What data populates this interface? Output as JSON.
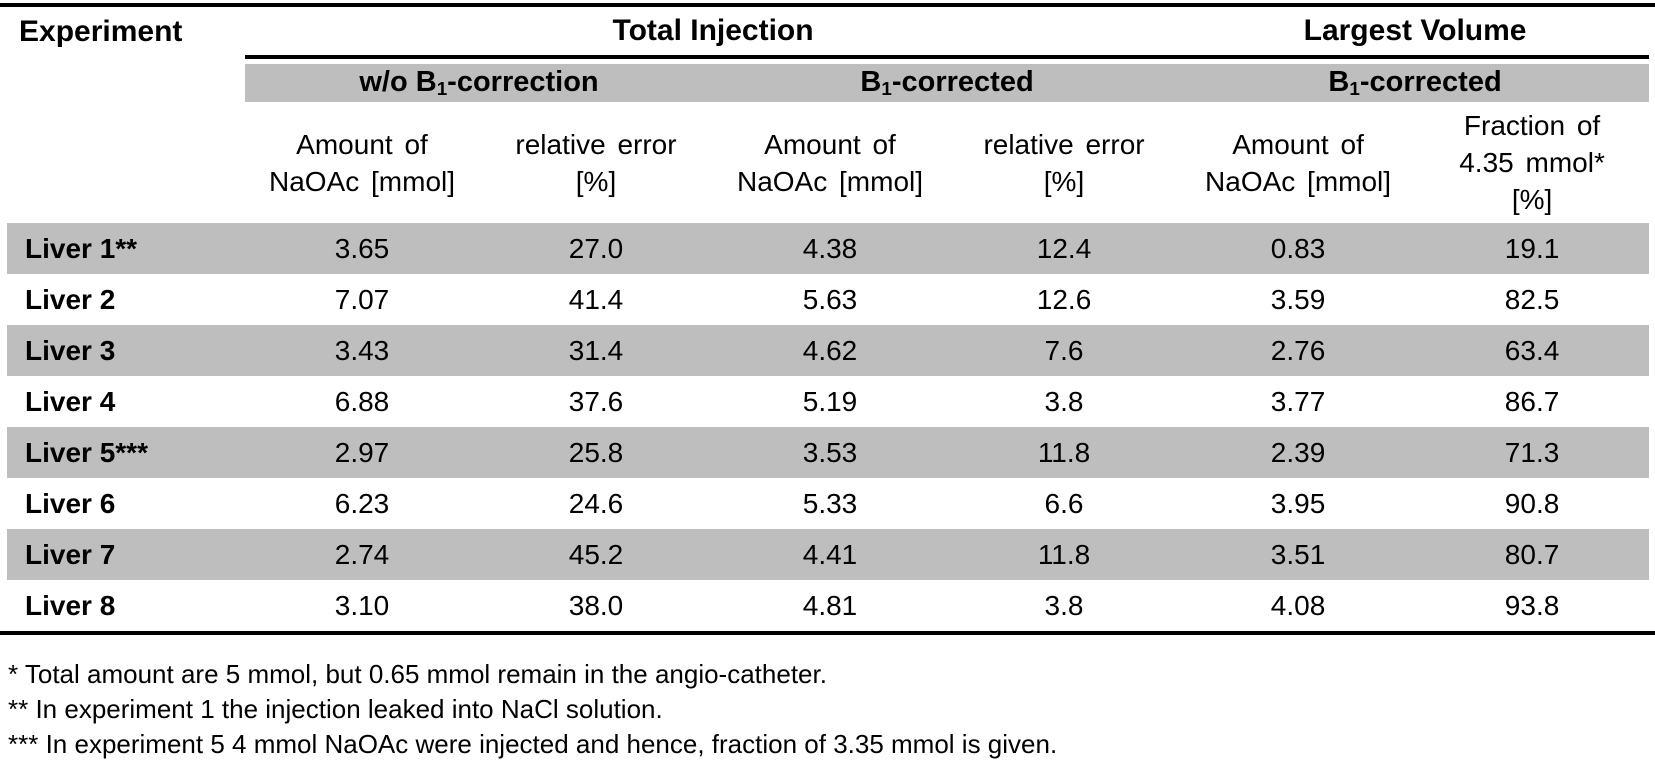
{
  "colors": {
    "row_shade": "#bebebe",
    "rule": "#000000"
  },
  "table": {
    "corner_label": "Experiment",
    "group_headers": {
      "total_injection": "Total Injection",
      "largest_volume": "Largest Volume"
    },
    "band_headers": [
      {
        "pre": "w/o B",
        "sub": "1",
        "post": "-correction"
      },
      {
        "pre": "B",
        "sub": "1",
        "post": "-corrected"
      },
      {
        "pre": "B",
        "sub": "1",
        "post": "-corrected"
      }
    ],
    "column_headers": [
      {
        "lines": [
          "Amount of",
          "NaOAc [mmol]",
          ""
        ]
      },
      {
        "lines": [
          "relative error",
          "[%]",
          ""
        ]
      },
      {
        "lines": [
          "Amount of",
          "NaOAc [mmol]",
          ""
        ]
      },
      {
        "lines": [
          "relative error",
          "[%]",
          ""
        ]
      },
      {
        "lines": [
          "Amount of",
          "NaOAc [mmol]",
          ""
        ]
      },
      {
        "lines": [
          "Fraction of",
          "4.35 mmol*",
          "[%]"
        ]
      }
    ],
    "rows": [
      {
        "label": "Liver 1**",
        "values": [
          "3.65",
          "27.0",
          "4.38",
          "12.4",
          "0.83",
          "19.1"
        ]
      },
      {
        "label": "Liver 2",
        "values": [
          "7.07",
          "41.4",
          "5.63",
          "12.6",
          "3.59",
          "82.5"
        ]
      },
      {
        "label": "Liver 3",
        "values": [
          "3.43",
          "31.4",
          "4.62",
          "7.6",
          "2.76",
          "63.4"
        ]
      },
      {
        "label": "Liver 4",
        "values": [
          "6.88",
          "37.6",
          "5.19",
          "3.8",
          "3.77",
          "86.7"
        ]
      },
      {
        "label": "Liver 5***",
        "values": [
          "2.97",
          "25.8",
          "3.53",
          "11.8",
          "2.39",
          "71.3"
        ]
      },
      {
        "label": "Liver 6",
        "values": [
          "6.23",
          "24.6",
          "5.33",
          "6.6",
          "3.95",
          "90.8"
        ]
      },
      {
        "label": "Liver 7",
        "values": [
          "2.74",
          "45.2",
          "4.41",
          "11.8",
          "3.51",
          "80.7"
        ]
      },
      {
        "label": "Liver 8",
        "values": [
          "3.10",
          "38.0",
          "4.81",
          "3.8",
          "4.08",
          "93.8"
        ]
      }
    ]
  },
  "footnotes": [
    "* Total amount are 5 mmol, but 0.65 mmol remain in the angio-catheter.",
    "** In experiment 1 the injection leaked into NaCl solution.",
    "*** In experiment 5 4 mmol NaOAc were injected and hence, fraction of 3.35 mmol is given."
  ]
}
